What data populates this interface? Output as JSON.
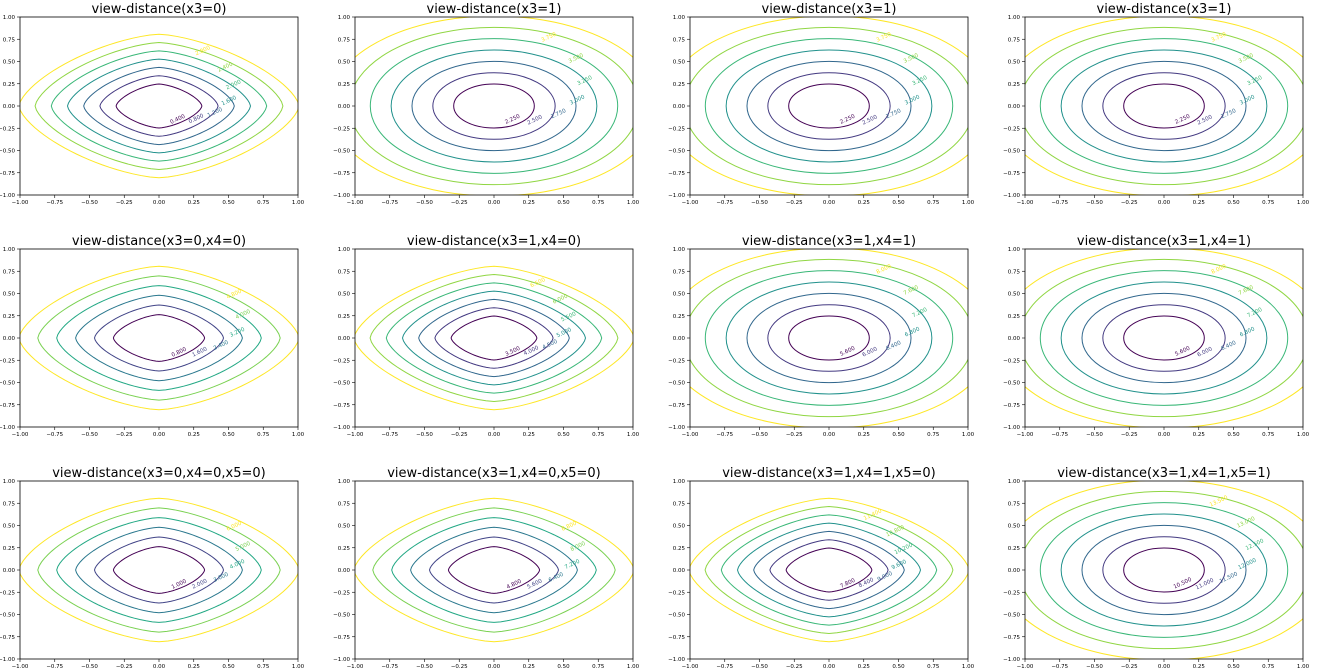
{
  "figure": {
    "colormap": "viridis",
    "rows": 3,
    "cols": 4
  },
  "chart_data": [
    {
      "type": "contour",
      "title": "view-distance(x3=0)",
      "xlim": [
        -1,
        1
      ],
      "ylim": [
        -1,
        1
      ],
      "xticks": [
        "−1.00",
        "−0.75",
        "−0.50",
        "−0.25",
        "0.00",
        "0.25",
        "0.50",
        "0.75",
        "1.00"
      ],
      "yticks": [
        "1.00",
        "0.75",
        "0.50",
        "0.25",
        "0.00",
        "−0.25",
        "−0.50",
        "−0.75",
        "−1.00"
      ],
      "shape": "diamond",
      "levels": [
        0.4,
        0.8,
        1.2,
        1.6,
        2.0,
        2.4,
        2.8
      ],
      "level_labels": [
        "0.400",
        "0.800",
        "1.200",
        "1.600",
        "2.000",
        "2.400",
        "2.800"
      ],
      "vmin": 0.4,
      "vmax": 2.8
    },
    {
      "type": "contour",
      "title": "view-distance(x3=1)",
      "xlim": [
        -1,
        1
      ],
      "ylim": [
        -1,
        1
      ],
      "xticks": [
        "−1.00",
        "−0.75",
        "−0.50",
        "−0.25",
        "0.00",
        "0.25",
        "0.50",
        "0.75",
        "1.00"
      ],
      "yticks": [
        "1.00",
        "0.75",
        "0.50",
        "0.25",
        "0.00",
        "−0.25",
        "−0.50",
        "−0.75",
        "−1.00"
      ],
      "shape": "circle",
      "levels": [
        2.25,
        2.5,
        2.75,
        3.0,
        3.25,
        3.5,
        3.75
      ],
      "level_labels": [
        "2.250",
        "2.500",
        "2.750",
        "3.000",
        "3.250",
        "3.500",
        "3.750"
      ],
      "vmin": 2.25,
      "vmax": 3.75
    },
    {
      "type": "contour",
      "title": "view-distance(x3=1)",
      "xlim": [
        -1,
        1
      ],
      "ylim": [
        -1,
        1
      ],
      "xticks": [
        "−1.00",
        "−0.75",
        "−0.50",
        "−0.25",
        "0.00",
        "0.25",
        "0.50",
        "0.75",
        "1.00"
      ],
      "yticks": [
        "1.00",
        "0.75",
        "0.50",
        "0.25",
        "0.00",
        "−0.25",
        "−0.50",
        "−0.75",
        "−1.00"
      ],
      "shape": "circle",
      "levels": [
        2.25,
        2.5,
        2.75,
        3.0,
        3.25,
        3.5,
        3.75
      ],
      "level_labels": [
        "2.250",
        "2.500",
        "2.750",
        "3.000",
        "3.250",
        "3.500",
        "3.750"
      ],
      "vmin": 2.25,
      "vmax": 3.75
    },
    {
      "type": "contour",
      "title": "view-distance(x3=1)",
      "xlim": [
        -1,
        1
      ],
      "ylim": [
        -1,
        1
      ],
      "xticks": [
        "−1.00",
        "−0.75",
        "−0.50",
        "−0.25",
        "0.00",
        "0.25",
        "0.50",
        "0.75",
        "1.00"
      ],
      "yticks": [
        "1.00",
        "0.75",
        "0.50",
        "0.25",
        "0.00",
        "−0.25",
        "−0.50",
        "−0.75",
        "−1.00"
      ],
      "shape": "circle",
      "levels": [
        2.25,
        2.5,
        2.75,
        3.0,
        3.25,
        3.5,
        3.75
      ],
      "level_labels": [
        "2.250",
        "2.500",
        "2.750",
        "3.000",
        "3.250",
        "3.500",
        "3.750"
      ],
      "vmin": 2.25,
      "vmax": 3.75
    },
    {
      "type": "contour",
      "title": "view-distance(x3=0,x4=0)",
      "xlim": [
        -1,
        1
      ],
      "ylim": [
        -1,
        1
      ],
      "xticks": [
        "−1.00",
        "−0.75",
        "−0.50",
        "−0.25",
        "0.00",
        "0.25",
        "0.50",
        "0.75",
        "1.00"
      ],
      "yticks": [
        "1.00",
        "0.75",
        "0.50",
        "0.25",
        "0.00",
        "−0.25",
        "−0.50",
        "−0.75",
        "−1.00"
      ],
      "shape": "diamond",
      "levels": [
        0.8,
        1.6,
        2.4,
        3.2,
        4.0,
        4.8
      ],
      "level_labels": [
        "0.800",
        "1.600",
        "2.400",
        "3.200",
        "4.000",
        "4.800"
      ],
      "vmin": 0.8,
      "vmax": 4.8
    },
    {
      "type": "contour",
      "title": "view-distance(x3=1,x4=0)",
      "xlim": [
        -1,
        1
      ],
      "ylim": [
        -1,
        1
      ],
      "xticks": [
        "−1.00",
        "−0.75",
        "−0.50",
        "−0.25",
        "0.00",
        "0.25",
        "0.50",
        "0.75",
        "1.00"
      ],
      "yticks": [
        "1.00",
        "0.75",
        "0.50",
        "0.25",
        "0.00",
        "−0.25",
        "−0.50",
        "−0.75",
        "−1.00"
      ],
      "shape": "diamond",
      "levels": [
        3.5,
        4.0,
        4.5,
        5.0,
        5.5,
        6.0,
        6.5
      ],
      "level_labels": [
        "3.500",
        "4.000",
        "4.500",
        "5.000",
        "5.500",
        "6.000",
        "6.500"
      ],
      "vmin": 3.5,
      "vmax": 6.5
    },
    {
      "type": "contour",
      "title": "view-distance(x3=1,x4=1)",
      "xlim": [
        -1,
        1
      ],
      "ylim": [
        -1,
        1
      ],
      "xticks": [
        "−1.00",
        "−0.75",
        "−0.50",
        "−0.25",
        "0.00",
        "0.25",
        "0.50",
        "0.75",
        "1.00"
      ],
      "yticks": [
        "1.00",
        "0.75",
        "0.50",
        "0.25",
        "0.00",
        "−0.25",
        "−0.50",
        "−0.75",
        "−1.00"
      ],
      "shape": "circle",
      "levels": [
        5.6,
        6.0,
        6.4,
        6.8,
        7.2,
        7.6,
        8.0
      ],
      "level_labels": [
        "5.600",
        "6.000",
        "6.400",
        "6.800",
        "7.200",
        "7.600",
        "8.000"
      ],
      "vmin": 5.6,
      "vmax": 8.0
    },
    {
      "type": "contour",
      "title": "view-distance(x3=1,x4=1)",
      "xlim": [
        -1,
        1
      ],
      "ylim": [
        -1,
        1
      ],
      "xticks": [
        "−1.00",
        "−0.75",
        "−0.50",
        "−0.25",
        "0.00",
        "0.25",
        "0.50",
        "0.75",
        "1.00"
      ],
      "yticks": [
        "1.00",
        "0.75",
        "0.50",
        "0.25",
        "0.00",
        "−0.25",
        "−0.50",
        "−0.75",
        "−1.00"
      ],
      "shape": "circle",
      "levels": [
        5.6,
        6.0,
        6.4,
        6.8,
        7.2,
        7.6,
        8.0
      ],
      "level_labels": [
        "5.600",
        "6.000",
        "6.400",
        "6.800",
        "7.200",
        "7.600",
        "8.000"
      ],
      "vmin": 5.6,
      "vmax": 8.0
    },
    {
      "type": "contour",
      "title": "view-distance(x3=0,x4=0,x5=0)",
      "xlim": [
        -1,
        1
      ],
      "ylim": [
        -1,
        1
      ],
      "xticks": [
        "−1.00",
        "−0.75",
        "−0.50",
        "−0.25",
        "0.00",
        "0.25",
        "0.50",
        "0.75",
        "1.00"
      ],
      "yticks": [
        "1.00",
        "0.75",
        "0.50",
        "0.25",
        "0.00",
        "−0.25",
        "−0.50",
        "−0.75",
        "−1.00"
      ],
      "shape": "diamond",
      "levels": [
        1.0,
        2.0,
        3.0,
        4.0,
        5.0,
        6.0
      ],
      "level_labels": [
        "1.000",
        "2.000",
        "3.000",
        "4.000",
        "5.000",
        "6.000"
      ],
      "vmin": 1.0,
      "vmax": 6.0
    },
    {
      "type": "contour",
      "title": "view-distance(x3=1,x4=0,x5=0)",
      "xlim": [
        -1,
        1
      ],
      "ylim": [
        -1,
        1
      ],
      "xticks": [
        "−1.00",
        "−0.75",
        "−0.50",
        "−0.25",
        "0.00",
        "0.25",
        "0.50",
        "0.75",
        "1.00"
      ],
      "yticks": [
        "1.00",
        "0.75",
        "0.50",
        "0.25",
        "0.00",
        "−0.25",
        "−0.50",
        "−0.75",
        "−1.00"
      ],
      "shape": "diamond",
      "levels": [
        4.8,
        5.6,
        6.4,
        7.2,
        8.0,
        8.8
      ],
      "level_labels": [
        "4.800",
        "5.600",
        "6.400",
        "7.200",
        "8.000",
        "8.800"
      ],
      "vmin": 4.8,
      "vmax": 8.8
    },
    {
      "type": "contour",
      "title": "view-distance(x3=1,x4=1,x5=0)",
      "xlim": [
        -1,
        1
      ],
      "ylim": [
        -1,
        1
      ],
      "xticks": [
        "−1.00",
        "−0.75",
        "−0.50",
        "−0.25",
        "0.00",
        "0.25",
        "0.50",
        "0.75",
        "1.00"
      ],
      "yticks": [
        "1.00",
        "0.75",
        "0.50",
        "0.25",
        "0.00",
        "−0.25",
        "−0.50",
        "−0.75",
        "−1.00"
      ],
      "shape": "diamond",
      "levels": [
        7.8,
        8.4,
        9.0,
        9.6,
        10.2,
        10.8,
        11.4
      ],
      "level_labels": [
        "7.800",
        "8.400",
        "9.000",
        "9.600",
        "10.200",
        "10.800",
        "11.400"
      ],
      "vmin": 7.8,
      "vmax": 11.4
    },
    {
      "type": "contour",
      "title": "view-distance(x3=1,x4=1,x5=1)",
      "xlim": [
        -1,
        1
      ],
      "ylim": [
        -1,
        1
      ],
      "xticks": [
        "−1.00",
        "−0.75",
        "−0.50",
        "−0.25",
        "0.00",
        "0.25",
        "0.50",
        "0.75",
        "1.00"
      ],
      "yticks": [
        "1.00",
        "0.75",
        "0.50",
        "0.25",
        "0.00",
        "−0.25",
        "−0.50",
        "−0.75",
        "−1.00"
      ],
      "shape": "circle",
      "levels": [
        10.5,
        11.0,
        11.5,
        12.0,
        12.5,
        13.0,
        13.5
      ],
      "level_labels": [
        "10.500",
        "11.000",
        "11.500",
        "12.000",
        "12.500",
        "13.000",
        "13.500"
      ],
      "vmin": 10.5,
      "vmax": 13.5
    }
  ]
}
